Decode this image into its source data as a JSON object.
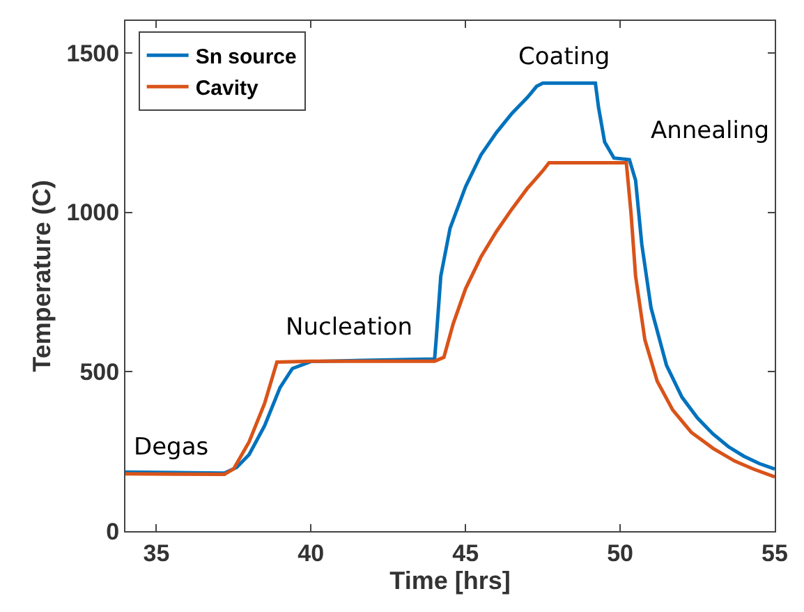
{
  "chart_data": {
    "type": "line",
    "xlabel": "Time [hrs]",
    "ylabel": "Temperature (C)",
    "xlim": [
      34,
      55
    ],
    "ylim": [
      0,
      1600
    ],
    "xticks": [
      35,
      40,
      45,
      50,
      55
    ],
    "yticks": [
      0,
      500,
      1000,
      1500
    ],
    "grid": false,
    "legend": "top left",
    "marker": "none",
    "line_style": "solid",
    "series": [
      {
        "name": "Sn source",
        "color": "#0072bd",
        "x": [
          34,
          37.2,
          37.6,
          38,
          38.5,
          39,
          39.4,
          40,
          44.0,
          44.05,
          44.2,
          44.5,
          45,
          45.5,
          46,
          46.5,
          47,
          47.3,
          47.5,
          49.2,
          49.3,
          49.5,
          49.8,
          50.3,
          50.5,
          50.7,
          51,
          51.5,
          52,
          52.5,
          53,
          53.5,
          54,
          54.5,
          55
        ],
        "values": [
          185,
          182,
          200,
          240,
          330,
          450,
          510,
          532,
          540,
          600,
          800,
          950,
          1080,
          1180,
          1250,
          1310,
          1360,
          1395,
          1405,
          1405,
          1330,
          1220,
          1170,
          1165,
          1100,
          900,
          700,
          520,
          420,
          355,
          305,
          265,
          235,
          212,
          195
        ]
      },
      {
        "name": "Cavity",
        "color": "#d95319",
        "x": [
          34,
          37.2,
          37.5,
          38,
          38.5,
          38.9,
          40,
          44,
          44.3,
          44.6,
          45,
          45.5,
          46,
          46.5,
          47,
          47.5,
          47.7,
          50.2,
          50.35,
          50.5,
          50.8,
          51.2,
          51.7,
          52.3,
          53,
          53.7,
          54.3,
          55
        ],
        "values": [
          180,
          178,
          195,
          280,
          400,
          530,
          533,
          533,
          545,
          650,
          760,
          860,
          940,
          1010,
          1075,
          1130,
          1155,
          1155,
          1000,
          800,
          600,
          470,
          380,
          310,
          260,
          220,
          195,
          170
        ]
      }
    ],
    "annotations": [
      "Degas",
      "Nucleation",
      "Coating",
      "Annealing"
    ]
  }
}
